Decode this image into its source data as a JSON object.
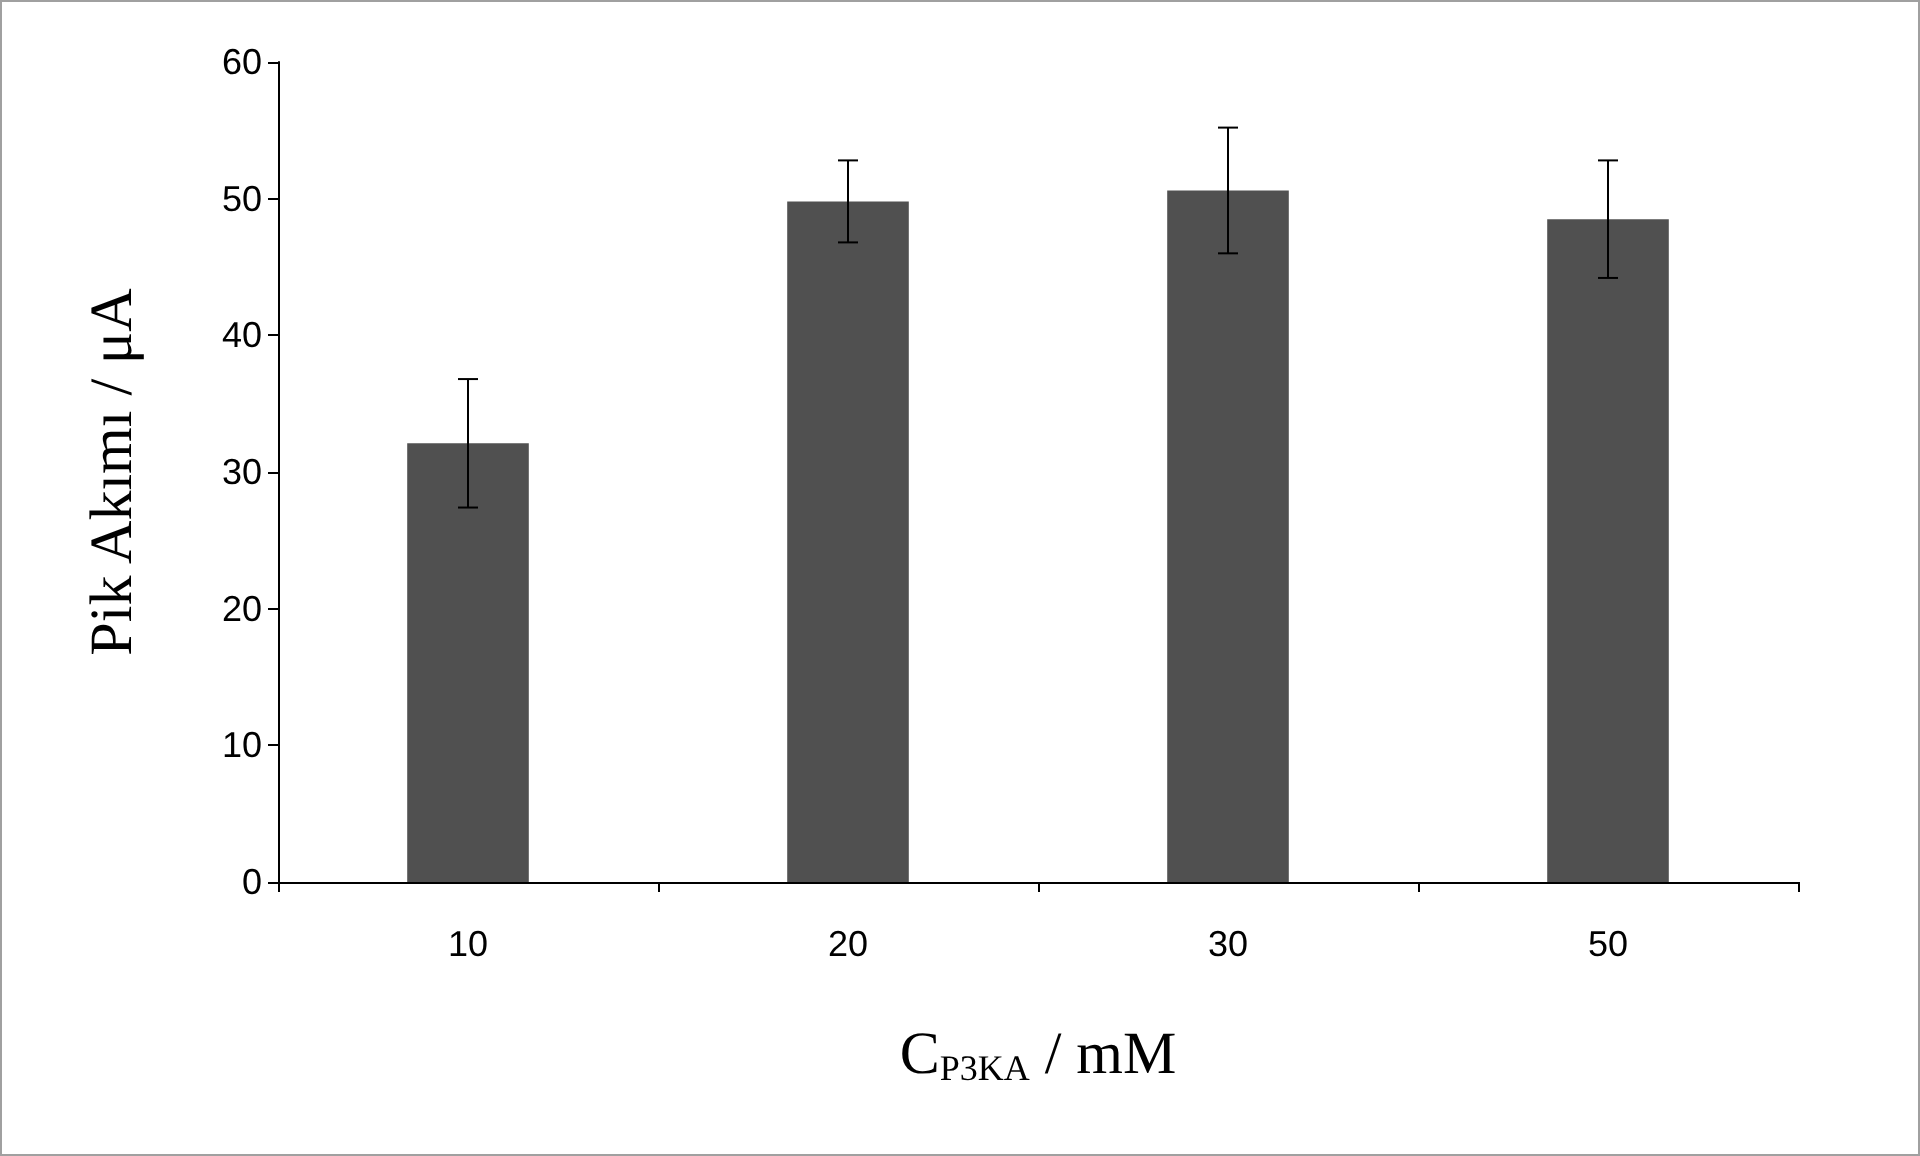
{
  "chart_data": {
    "type": "bar",
    "xlabel": "C$_{P3KA}$ / mM",
    "ylabel": "Pik Akımı / μA",
    "categories": [
      "10",
      "20",
      "30",
      "50"
    ],
    "values": [
      32.1,
      49.8,
      50.6,
      48.5
    ],
    "errors": [
      4.7,
      3.0,
      4.6,
      4.3
    ],
    "color": "#505050",
    "ylim": [
      0,
      60
    ],
    "yticks": [
      0,
      10,
      20,
      30,
      40,
      50,
      60
    ],
    "grid": false
  }
}
